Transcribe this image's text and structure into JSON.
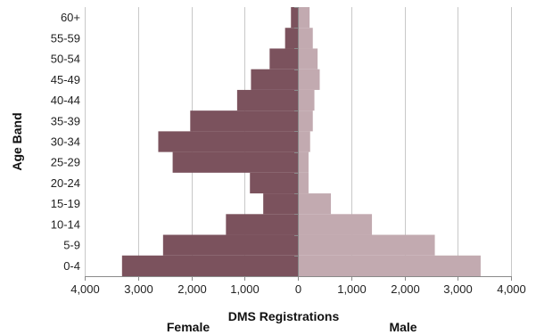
{
  "chart_data": {
    "type": "bar",
    "orientation": "horizontal",
    "layout": "population-pyramid",
    "categories": [
      "0-4",
      "5-9",
      "10-14",
      "15-19",
      "20-24",
      "25-29",
      "30-34",
      "35-39",
      "40-44",
      "45-49",
      "50-54",
      "55-59",
      "60+"
    ],
    "series": [
      {
        "name": "Female",
        "color": "#7b525d",
        "values": [
          3300,
          2530,
          1350,
          650,
          900,
          2350,
          2620,
          2020,
          1140,
          880,
          530,
          240,
          130
        ]
      },
      {
        "name": "Male",
        "color": "#c2aab0",
        "values": [
          3430,
          2570,
          1390,
          620,
          200,
          200,
          230,
          280,
          310,
          410,
          370,
          280,
          220
        ]
      }
    ],
    "xlabel": "DMS Registrations",
    "ylabel": "Age Band",
    "xlim": [
      -4000,
      4000
    ],
    "xticks": [
      -4000,
      -3000,
      -2000,
      -1000,
      0,
      1000,
      2000,
      3000,
      4000
    ],
    "xtick_labels": [
      "4,000",
      "3,000",
      "2,000",
      "1,000",
      "0",
      "1,000",
      "2,000",
      "3,000",
      "4,000"
    ],
    "grid": "vertical",
    "legend": "none"
  }
}
